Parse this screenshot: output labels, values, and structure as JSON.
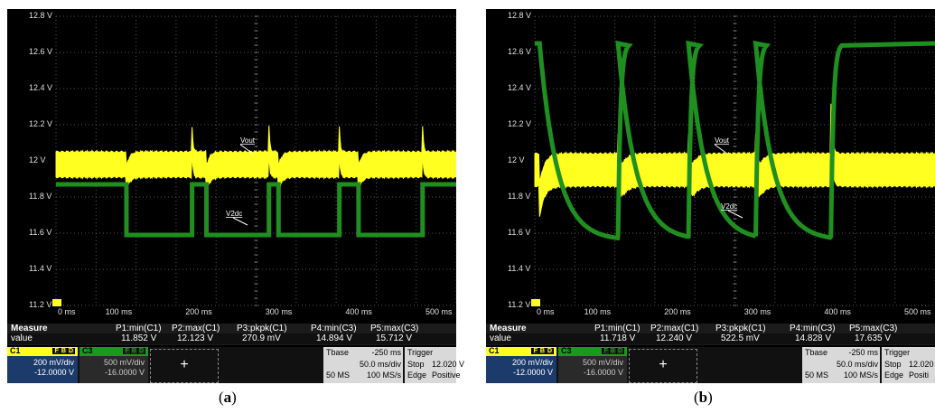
{
  "chart_data": [
    {
      "type": "line",
      "panel": "a",
      "caption_letter": "a",
      "ylim": [
        11.2,
        12.8
      ],
      "yticks": [
        "12.8 V",
        "12.6 V",
        "12.4 V",
        "12.2 V",
        "12 V",
        "11.8 V",
        "11.6 V",
        "11.4 V",
        "11.2 V"
      ],
      "xlim": [
        0,
        500
      ],
      "xticks": [
        "0 ms",
        "100 ms",
        "200 ms",
        "300 ms",
        "400 ms",
        "500 ms"
      ],
      "grid": true,
      "series": [
        {
          "name": "Vout",
          "color": "#ffff20",
          "kind": "vout",
          "base": 11.98,
          "band": 0.07,
          "spike_up": 12.12,
          "spike_down": 11.9,
          "edges": [
            [
              44,
              85
            ],
            [
              94,
              133
            ],
            [
              139,
              177
            ],
            [
              189,
              229
            ]
          ]
        },
        {
          "name": "V2dc",
          "color": "#1f8f1f",
          "kind": "square",
          "high": 11.87,
          "low": 11.59,
          "edges": [
            [
              44,
              85
            ],
            [
              94,
              133
            ],
            [
              139,
              177
            ],
            [
              189,
              229
            ]
          ]
        }
      ],
      "measure": {
        "header": "Measure",
        "row_label": "value",
        "params": [
          {
            "name": "P1:min(C1)",
            "value": "11.852 V"
          },
          {
            "name": "P2:max(C1)",
            "value": "12.123 V"
          },
          {
            "name": "P3:pkpk(C1)",
            "value": "270.9 mV"
          },
          {
            "name": "P4:min(C3)",
            "value": "14.894 V"
          },
          {
            "name": "P5:max(C3)",
            "value": "15.712 V"
          }
        ]
      },
      "c1": {
        "name": "C1",
        "flags": [
          "F",
          "B",
          "D"
        ],
        "vdiv": "200 mV/div",
        "offset": "-12.0000 V"
      },
      "c3": {
        "name": "C3",
        "flags": [
          "F",
          "B",
          "D"
        ],
        "vdiv": "500 mV/div",
        "offset": "-16.0000 V"
      },
      "timebase": {
        "label": "Tbase",
        "delay": "-250 ms",
        "tdiv": "50.0 ms/div",
        "samples": "50 MS",
        "rate": "100 MS/s"
      },
      "trigger": {
        "label": "Trigger",
        "state": "Stop",
        "level": "12.020 V",
        "type": "Edge",
        "slope": "Positive"
      }
    },
    {
      "type": "line",
      "panel": "b",
      "caption_letter": "b",
      "ylim": [
        11.2,
        12.8
      ],
      "yticks": [
        "12.8 V",
        "12.6 V",
        "12.4 V",
        "12.2 V",
        "12 V",
        "11.8 V",
        "11.6 V",
        "11.4 V",
        "11.2 V"
      ],
      "xlim": [
        0,
        500
      ],
      "xticks": [
        "0 ms",
        "100 ms",
        "200 ms",
        "300 ms",
        "400 ms",
        "500 ms"
      ],
      "grid": true,
      "series": [
        {
          "name": "Vout",
          "color": "#ffff20",
          "kind": "vout_b",
          "base": 11.95,
          "band": 0.09,
          "spike_up": 12.23,
          "spike_down": 11.78,
          "edges": [
            [
              3,
              52
            ],
            [
              52,
              96
            ],
            [
              96,
              138
            ],
            [
              138,
              185
            ]
          ]
        },
        {
          "name": "V2dc",
          "color": "#1f8f1f",
          "kind": "exp",
          "high": 12.65,
          "low": 11.56,
          "edges": [
            [
              3,
              52
            ],
            [
              52,
              96
            ],
            [
              96,
              138
            ],
            [
              138,
              185
            ]
          ]
        }
      ],
      "measure": {
        "header": "Measure",
        "row_label": "value",
        "params": [
          {
            "name": "P1:min(C1)",
            "value": "11.718 V"
          },
          {
            "name": "P2:max(C1)",
            "value": "12.240 V"
          },
          {
            "name": "P3:pkpk(C1)",
            "value": "522.5 mV"
          },
          {
            "name": "P4:min(C3)",
            "value": "14.828 V"
          },
          {
            "name": "P5:max(C3)",
            "value": "17.635 V"
          }
        ]
      },
      "c1": {
        "name": "C1",
        "flags": [
          "F",
          "B",
          "D"
        ],
        "vdiv": "200 mV/div",
        "offset": "-12.0000 V"
      },
      "c3": {
        "name": "C3",
        "flags": [
          "F",
          "B",
          "D"
        ],
        "vdiv": "500 mV/div",
        "offset": "-16.0000 V"
      },
      "timebase": {
        "label": "Tbase",
        "delay": "-250 ms",
        "tdiv": "50.0 ms/div",
        "samples": "50 MS",
        "rate": "100 MS/s"
      },
      "trigger": {
        "label": "Trigger",
        "state": "Stop",
        "level": "12.020",
        "type": "Edge",
        "slope": "Positi"
      }
    }
  ],
  "captions": [
    "a",
    "b"
  ]
}
